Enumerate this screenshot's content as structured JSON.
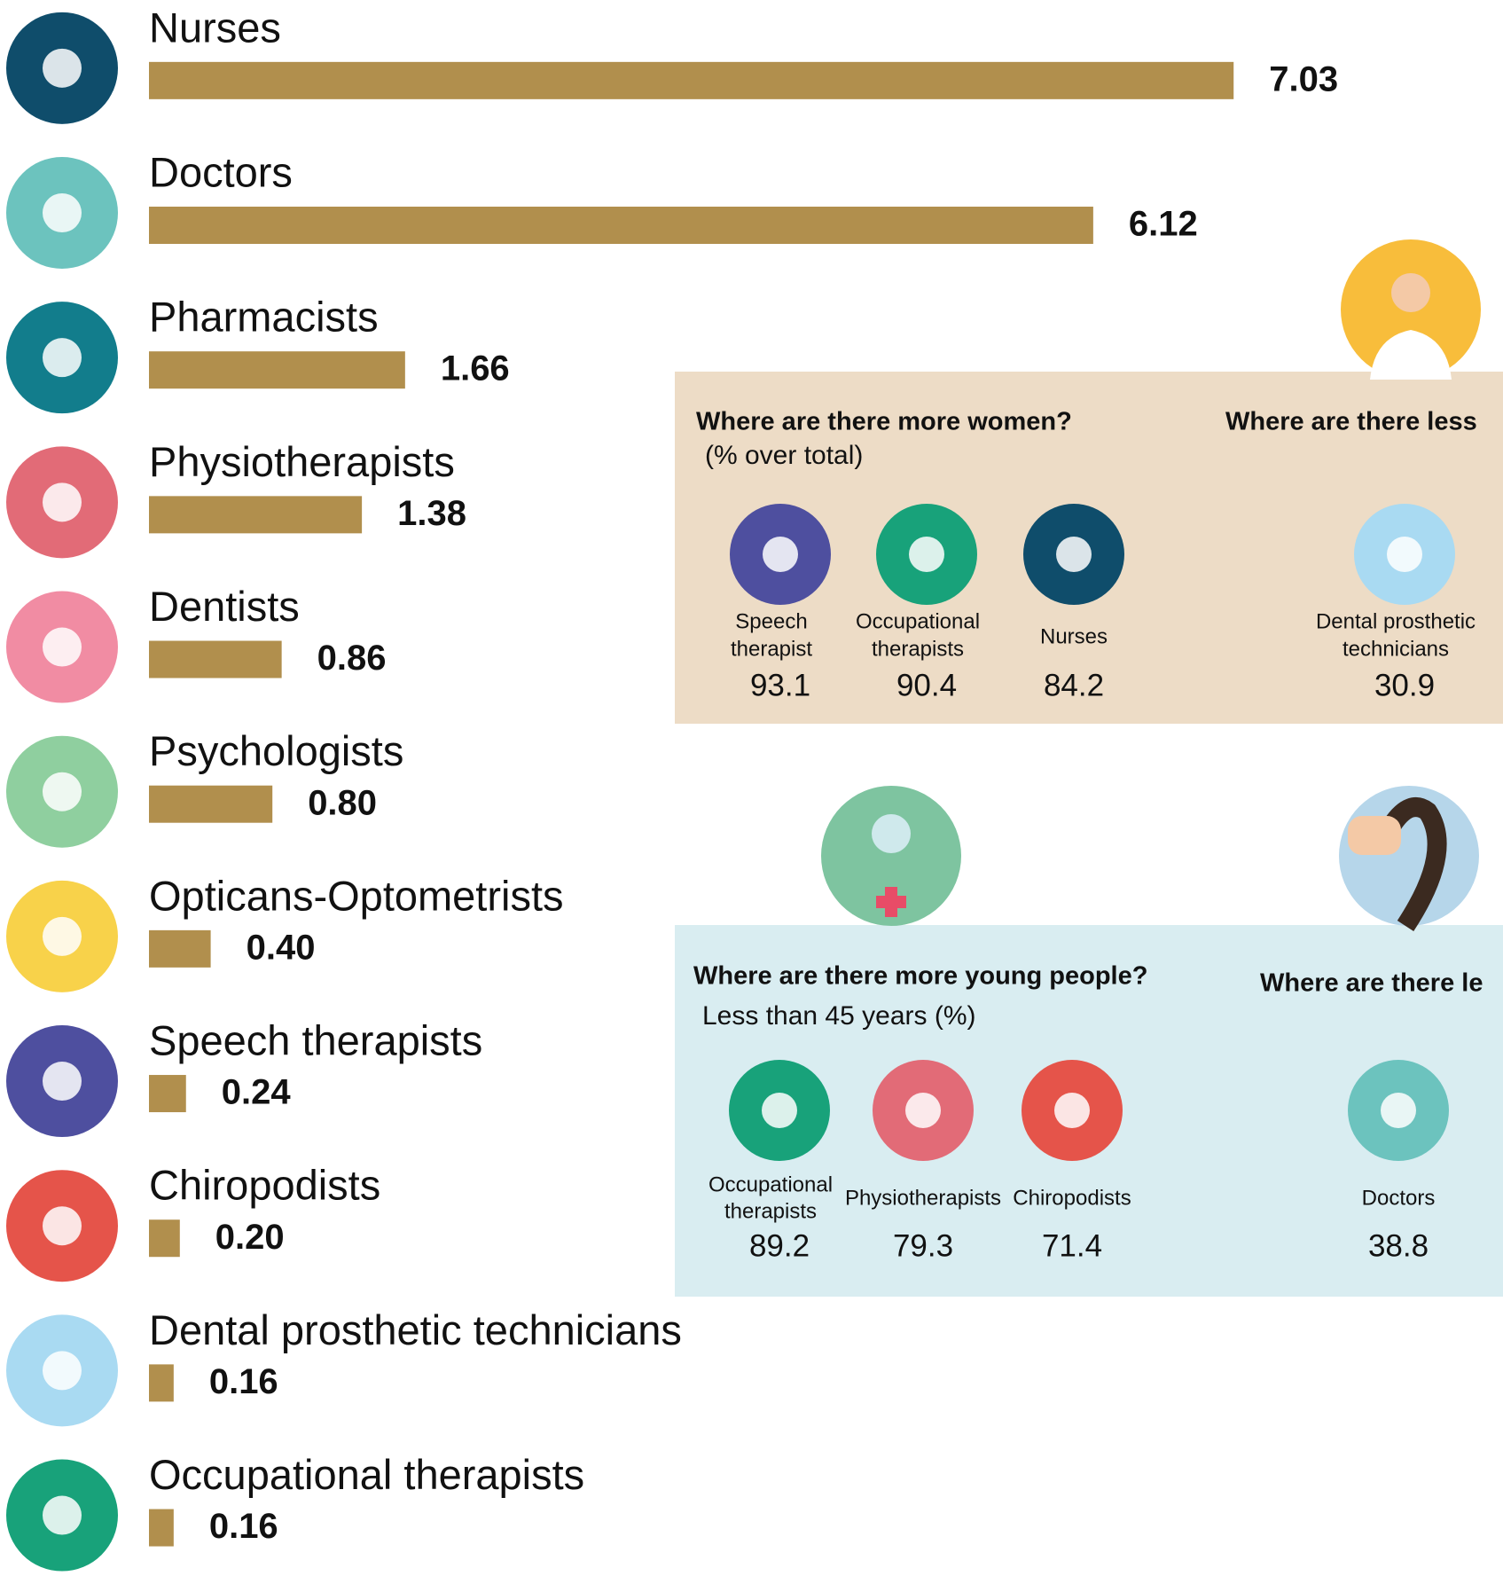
{
  "chart_data": {
    "type": "bar",
    "categories": [
      "Nurses",
      "Doctors",
      "Pharmacists",
      "Physiotherapists",
      "Dentists",
      "Psychologists",
      "Opticans-Optometrists",
      "Speech therapists",
      "Chiropodists",
      "Dental prosthetic technicians",
      "Occupational therapists"
    ],
    "values": [
      7.03,
      6.12,
      1.66,
      1.38,
      0.86,
      0.8,
      0.4,
      0.24,
      0.2,
      0.16,
      0.16
    ],
    "value_labels": [
      "7.03",
      "6.12",
      "1.66",
      "1.38",
      "0.86",
      "0.80",
      "0.40",
      "0.24",
      "0.20",
      "0.16",
      "0.16"
    ],
    "color": "#b18f4d"
  },
  "panels": [
    {
      "title": "Where are there more women?",
      "subtitle": "(% over total)",
      "second_title": "Where are there less",
      "items": [
        {
          "label_lines": [
            "Speech",
            "therapist"
          ],
          "value": 93.1
        },
        {
          "label_lines": [
            "Occupational",
            "therapists"
          ],
          "value": 90.4
        },
        {
          "label_lines": [
            "Nurses"
          ],
          "value": 84.2
        },
        {
          "label_lines": [
            "Dental prosthetic",
            "technicians"
          ],
          "value": 30.9
        }
      ]
    },
    {
      "title": "Where are there more young people?",
      "subtitle": "Less than 45 years (%)",
      "second_title": "Where are there le",
      "items": [
        {
          "label_lines": [
            "Occupational",
            "therapists"
          ],
          "value": 89.2
        },
        {
          "label_lines": [
            "Physiotherapists"
          ],
          "value": 79.3
        },
        {
          "label_lines": [
            "Chiropodists"
          ],
          "value": 71.4
        },
        {
          "label_lines": [
            "Doctors"
          ],
          "value": 38.8
        }
      ]
    }
  ]
}
